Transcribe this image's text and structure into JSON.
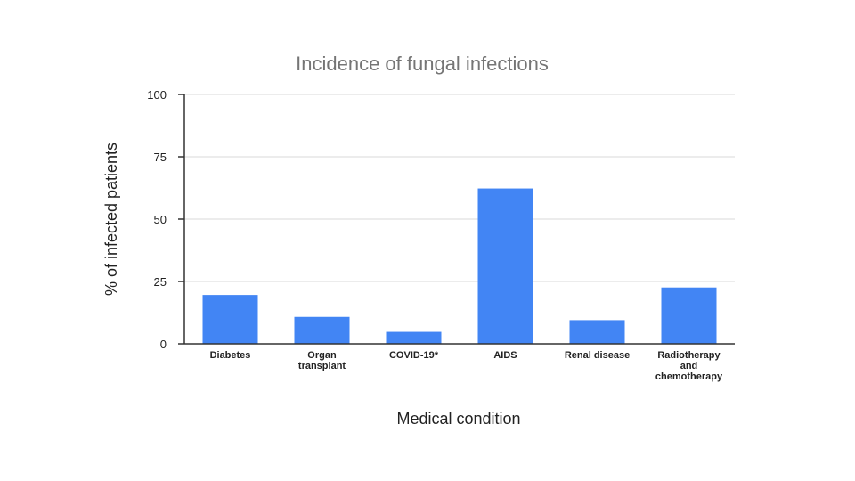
{
  "chart_data": {
    "type": "bar",
    "title": "Incidence of fungal infections",
    "xlabel": "Medical condition",
    "ylabel": "% of infected patients",
    "categories": [
      "Diabetes",
      "Organ transplant",
      "COVID-19*",
      "AIDS",
      "Renal disease",
      "Radiotherapy and chemotherapy"
    ],
    "category_lines": [
      [
        "Diabetes"
      ],
      [
        "Organ",
        "transplant"
      ],
      [
        "COVID-19*"
      ],
      [
        "AIDS"
      ],
      [
        "Renal disease"
      ],
      [
        "Radiotherapy",
        "and",
        "chemotherapy"
      ]
    ],
    "values": [
      19.6,
      10.8,
      4.8,
      62.3,
      9.5,
      22.6
    ],
    "ylim": [
      0,
      100
    ],
    "yticks": [
      0,
      25,
      50,
      75,
      100
    ],
    "grid": true,
    "legend": "none",
    "bar_color": "#4285f4"
  }
}
